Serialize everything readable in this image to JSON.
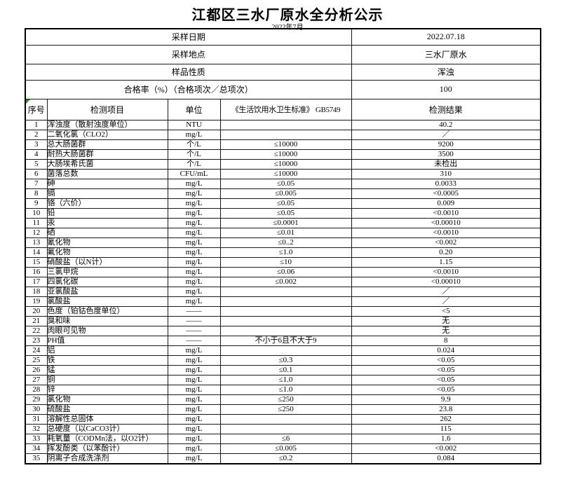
{
  "page": {
    "title": "江都区三水厂原水全分析公示",
    "subtitle": "2022年7月"
  },
  "summary": [
    {
      "label": "采样日期",
      "value": "2022.07.18"
    },
    {
      "label": "采样地点",
      "value": "三水厂原水"
    },
    {
      "label": "样品性质",
      "value": "浑浊"
    },
    {
      "label": "合格率（%）（合格项次／总项次）",
      "value": "100"
    }
  ],
  "table": {
    "columns": [
      "序号",
      "检测项目",
      "单位",
      "《生活饮用水卫生标准》 GB5749",
      "检测结果"
    ],
    "rows": [
      {
        "no": "1",
        "item": "浑浊度（散射浊度单位）",
        "unit": "NTU",
        "standard": "",
        "result": "40.2"
      },
      {
        "no": "2",
        "item": "二氧化氯（CLO2）",
        "unit": "mg/L",
        "standard": "",
        "result": "／"
      },
      {
        "no": "3",
        "item": "总大肠菌群",
        "unit": "个/L",
        "standard": "≤10000",
        "result": "9200"
      },
      {
        "no": "4",
        "item": "耐热大肠菌群",
        "unit": "个/L",
        "standard": "≤10000",
        "result": "3500"
      },
      {
        "no": "5",
        "item": "大肠埃希氏菌",
        "unit": "个/L",
        "standard": "≤10000",
        "result": "未检出"
      },
      {
        "no": "6",
        "item": "菌落总数",
        "unit": "CFU/mL",
        "standard": "≤10000",
        "result": "310"
      },
      {
        "no": "7",
        "item": "砷",
        "unit": "mg/L",
        "standard": "≤0.05",
        "result": "0.0033"
      },
      {
        "no": "8",
        "item": "镉",
        "unit": "mg/L",
        "standard": "≤0.005",
        "result": "<0.0005"
      },
      {
        "no": "9",
        "item": "铬（六价）",
        "unit": "mg/L",
        "standard": "≤0.05",
        "result": "0.009"
      },
      {
        "no": "10",
        "item": "铅",
        "unit": "mg/L",
        "standard": "≤0.05",
        "result": "<0.0010"
      },
      {
        "no": "11",
        "item": "汞",
        "unit": "mg/L",
        "standard": "≤0.0001",
        "result": "<0.00010"
      },
      {
        "no": "12",
        "item": "硒",
        "unit": "mg/L",
        "standard": "≤0.01",
        "result": "<0.0010"
      },
      {
        "no": "13",
        "item": "氰化物",
        "unit": "mg/L",
        "standard": "≤0..2",
        "result": "<0.002"
      },
      {
        "no": "14",
        "item": "氟化物",
        "unit": "mg/L",
        "standard": "≤1.0",
        "result": "0.20"
      },
      {
        "no": "15",
        "item": "硝酸盐（以N计）",
        "unit": "mg/L",
        "standard": "≤10",
        "result": "1.15"
      },
      {
        "no": "16",
        "item": "三氯甲烷",
        "unit": "mg/L",
        "standard": "≤0.06",
        "result": "<0.0010"
      },
      {
        "no": "17",
        "item": "四氯化碳",
        "unit": "mg/L",
        "standard": "≤0.002",
        "result": "<0.00010"
      },
      {
        "no": "18",
        "item": "亚氯酸盐",
        "unit": "mg/L",
        "standard": "",
        "result": "／"
      },
      {
        "no": "19",
        "item": "氯酸盐",
        "unit": "mg/L",
        "standard": "",
        "result": "／"
      },
      {
        "no": "20",
        "item": "色度（铂钴色度单位）",
        "unit": "——",
        "standard": "",
        "result": "<5"
      },
      {
        "no": "21",
        "item": "臭和味",
        "unit": "——",
        "standard": "",
        "result": "无"
      },
      {
        "no": "22",
        "item": "肉眼可见物",
        "unit": "——",
        "standard": "",
        "result": "无"
      },
      {
        "no": "23",
        "item": "PH值",
        "unit": "——",
        "standard": "不小于6且不大于9",
        "result": "8"
      },
      {
        "no": "24",
        "item": "铝",
        "unit": "mg/L",
        "standard": "",
        "result": "0.024"
      },
      {
        "no": "25",
        "item": "铁",
        "unit": "mg/L",
        "standard": "≤0.3",
        "result": "<0.05"
      },
      {
        "no": "26",
        "item": "锰",
        "unit": "mg/L",
        "standard": "≤0.1",
        "result": "<0.05"
      },
      {
        "no": "27",
        "item": "铜",
        "unit": "mg/L",
        "standard": "≤1.0",
        "result": "<0.05"
      },
      {
        "no": "28",
        "item": "锌",
        "unit": "mg/L",
        "standard": "≤1.0",
        "result": "<0.05"
      },
      {
        "no": "29",
        "item": "氯化物",
        "unit": "mg/L",
        "standard": "≤250",
        "result": "9.9"
      },
      {
        "no": "30",
        "item": "硫酸盐",
        "unit": "mg/L",
        "standard": "≤250",
        "result": "23.8"
      },
      {
        "no": "31",
        "item": "溶解性总固体",
        "unit": "mg/L",
        "standard": "",
        "result": "262"
      },
      {
        "no": "32",
        "item": "总硬度（以CaCO3计）",
        "unit": "mg/L",
        "standard": "",
        "result": "115"
      },
      {
        "no": "33",
        "item": "耗氧量（CODMn法，以O2计）",
        "unit": "mg/L",
        "standard": "≤6",
        "result": "1.6"
      },
      {
        "no": "34",
        "item": "挥发酚类（以苯酚计）",
        "unit": "mg/L",
        "standard": "≤0.005",
        "result": "<0.002"
      },
      {
        "no": "35",
        "item": "阴离子合成洗涤剂",
        "unit": "mg/L",
        "standard": "≤0.2",
        "result": "0.084"
      }
    ]
  }
}
